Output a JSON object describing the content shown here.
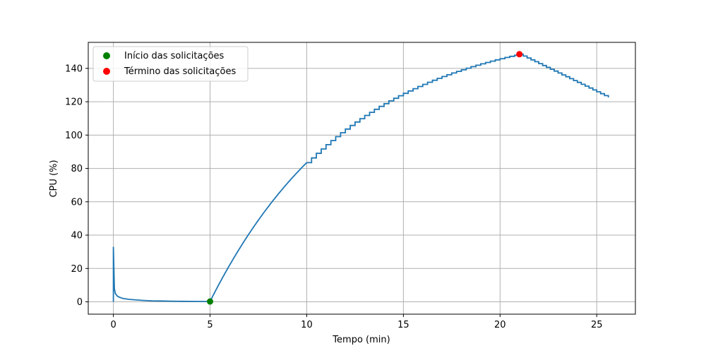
{
  "chart_data": {
    "type": "line",
    "xlabel": "Tempo (min)",
    "ylabel": "CPU (%)",
    "xlim": [
      -1.3,
      27.0
    ],
    "ylim": [
      -7.4,
      155.6
    ],
    "x_ticks": [
      0,
      5,
      10,
      15,
      20,
      25
    ],
    "y_ticks": [
      0,
      20,
      40,
      60,
      80,
      100,
      120,
      140
    ],
    "grid": true,
    "legend_position": "top-left",
    "series": [
      {
        "color": "#1f77b4",
        "points": [
          [
            0.0,
            0.0
          ],
          [
            0.0,
            33.0
          ],
          [
            0.05,
            8.0
          ],
          [
            0.1,
            5.0
          ],
          [
            0.2,
            3.5
          ],
          [
            0.3,
            2.8
          ],
          [
            0.5,
            2.0
          ],
          [
            0.8,
            1.5
          ],
          [
            1.2,
            1.1
          ],
          [
            1.6,
            0.8
          ],
          [
            2.0,
            0.6
          ],
          [
            2.5,
            0.5
          ],
          [
            3.0,
            0.4
          ],
          [
            3.5,
            0.3
          ],
          [
            4.0,
            0.25
          ],
          [
            4.5,
            0.2
          ],
          [
            5.0,
            0.2
          ]
        ]
      },
      {
        "color": "#1f77b4",
        "rise": {
          "start": [
            5.0,
            0.2
          ],
          "end": [
            21.0,
            148.5
          ],
          "steps_from": 10.0,
          "step_width": 0.25
        },
        "decline": {
          "start": [
            21.0,
            148.5
          ],
          "end": [
            25.7,
            122.0
          ],
          "step_width": 0.2
        }
      }
    ],
    "markers": [
      {
        "label": "Início das solicitações",
        "x": 5.0,
        "y": 0.2,
        "color": "#008000"
      },
      {
        "label": "Término das solicitações",
        "x": 21.0,
        "y": 148.5,
        "color": "#ff0000"
      }
    ]
  }
}
